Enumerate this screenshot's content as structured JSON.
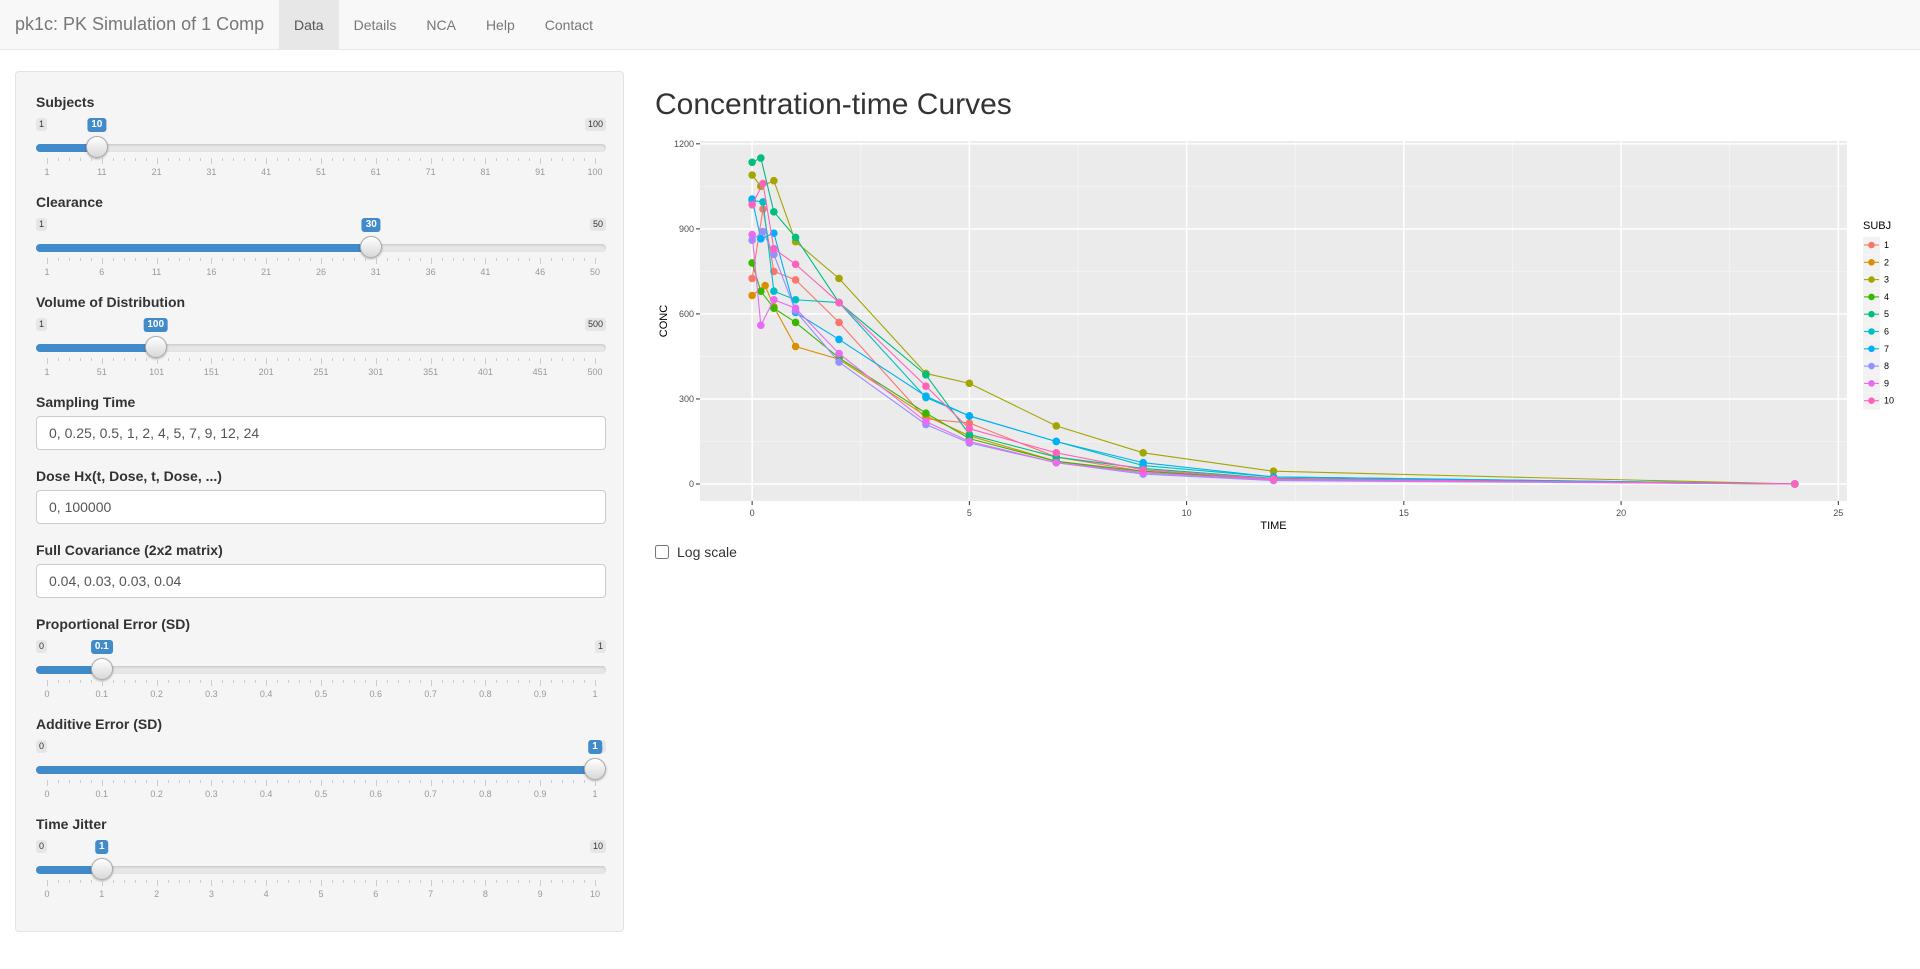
{
  "app": {
    "title": "pk1c: PK Simulation of 1 Comp",
    "tabs": [
      {
        "label": "Data",
        "active": true
      },
      {
        "label": "Details",
        "active": false
      },
      {
        "label": "NCA",
        "active": false
      },
      {
        "label": "Help",
        "active": false
      },
      {
        "label": "Contact",
        "active": false
      }
    ]
  },
  "sidebar": {
    "subjects": {
      "label": "Subjects",
      "min": 1,
      "max": 100,
      "value": 10,
      "ticks": [
        "1",
        "11",
        "21",
        "31",
        "41",
        "51",
        "61",
        "71",
        "81",
        "91",
        "100"
      ]
    },
    "clearance": {
      "label": "Clearance",
      "min": 1,
      "max": 50,
      "value": 30,
      "ticks": [
        "1",
        "6",
        "11",
        "16",
        "21",
        "26",
        "31",
        "36",
        "41",
        "46",
        "50"
      ]
    },
    "volume": {
      "label": "Volume of Distribution",
      "min": 1,
      "max": 500,
      "value": 100,
      "ticks": [
        "1",
        "51",
        "101",
        "151",
        "201",
        "251",
        "301",
        "351",
        "401",
        "451",
        "500"
      ]
    },
    "sampling_time": {
      "label": "Sampling Time",
      "value": "0, 0.25, 0.5, 1, 2, 4, 5, 7, 9, 12, 24"
    },
    "dose_hx": {
      "label": "Dose Hx(t, Dose, t, Dose, ...)",
      "value": "0, 100000"
    },
    "covariance": {
      "label": "Full Covariance (2x2 matrix)",
      "value": "0.04, 0.03, 0.03, 0.04"
    },
    "prop_error": {
      "label": "Proportional Error (SD)",
      "min": 0,
      "max": 1,
      "value": 0.1,
      "ticks": [
        "0",
        "0.1",
        "0.2",
        "0.3",
        "0.4",
        "0.5",
        "0.6",
        "0.7",
        "0.8",
        "0.9",
        "1"
      ]
    },
    "add_error": {
      "label": "Additive Error (SD)",
      "min": 0,
      "max": 1,
      "value": 1,
      "ticks": [
        "0",
        "0.1",
        "0.2",
        "0.3",
        "0.4",
        "0.5",
        "0.6",
        "0.7",
        "0.8",
        "0.9",
        "1"
      ]
    },
    "time_jitter": {
      "label": "Time Jitter",
      "min": 0,
      "max": 10,
      "value": 1,
      "ticks": [
        "0",
        "1",
        "2",
        "3",
        "4",
        "5",
        "6",
        "7",
        "8",
        "9",
        "10"
      ]
    }
  },
  "main": {
    "title": "Concentration-time Curves",
    "log_scale_label": "Log scale",
    "log_scale_checked": false
  },
  "chart_data": {
    "type": "line",
    "xlabel": "TIME",
    "ylabel": "CONC",
    "xlim": [
      -1.2,
      25.2
    ],
    "ylim": [
      -60,
      1210
    ],
    "xticks": [
      0,
      5,
      10,
      15,
      20,
      25
    ],
    "yticks": [
      0,
      300,
      600,
      900,
      1200
    ],
    "legend_title": "SUBJ",
    "legend_position": "right",
    "grid": true,
    "series": [
      {
        "name": "1",
        "color": "#F8766D",
        "x": [
          0,
          0.25,
          0.5,
          1,
          2,
          4,
          5,
          7,
          9,
          12,
          24
        ],
        "y": [
          725,
          970,
          750,
          720,
          570,
          230,
          215,
          95,
          45,
          18,
          0
        ]
      },
      {
        "name": "2",
        "color": "#D89000",
        "x": [
          0,
          0.3,
          0.5,
          1,
          2,
          4,
          5,
          7,
          9,
          12,
          24
        ],
        "y": [
          665,
          700,
          625,
          485,
          440,
          240,
          170,
          80,
          40,
          15,
          0
        ]
      },
      {
        "name": "3",
        "color": "#A3A500",
        "x": [
          0,
          0.2,
          0.5,
          1,
          2,
          4,
          5,
          7,
          9,
          12,
          24
        ],
        "y": [
          1090,
          1050,
          1070,
          855,
          725,
          390,
          355,
          205,
          110,
          45,
          0
        ]
      },
      {
        "name": "4",
        "color": "#39B600",
        "x": [
          0,
          0.2,
          0.5,
          1,
          2,
          4,
          5,
          7,
          9,
          12,
          24
        ],
        "y": [
          780,
          680,
          620,
          570,
          445,
          250,
          160,
          80,
          45,
          15,
          0
        ]
      },
      {
        "name": "5",
        "color": "#00BF7D",
        "x": [
          0,
          0.2,
          0.5,
          1,
          2,
          4,
          5,
          7,
          9,
          12,
          24
        ],
        "y": [
          1135,
          1150,
          960,
          870,
          640,
          385,
          175,
          95,
          55,
          20,
          0
        ]
      },
      {
        "name": "6",
        "color": "#00BFC4",
        "x": [
          0,
          0.25,
          0.5,
          1,
          2,
          4,
          5,
          7,
          9,
          12,
          24
        ],
        "y": [
          1000,
          995,
          680,
          650,
          640,
          305,
          240,
          150,
          65,
          25,
          0
        ]
      },
      {
        "name": "7",
        "color": "#00B0F6",
        "x": [
          0,
          0.2,
          0.5,
          1,
          2,
          4,
          5,
          7,
          9,
          12,
          24
        ],
        "y": [
          1005,
          865,
          885,
          605,
          510,
          310,
          240,
          150,
          75,
          25,
          0
        ]
      },
      {
        "name": "8",
        "color": "#9590FF",
        "x": [
          0,
          0.25,
          0.5,
          1,
          2,
          4,
          5,
          7,
          9,
          12,
          24
        ],
        "y": [
          860,
          890,
          810,
          610,
          430,
          210,
          145,
          75,
          35,
          12,
          0
        ]
      },
      {
        "name": "9",
        "color": "#E76BF3",
        "x": [
          0,
          0.2,
          0.5,
          1,
          2,
          4,
          5,
          7,
          9,
          12,
          24
        ],
        "y": [
          880,
          560,
          650,
          620,
          460,
          220,
          150,
          75,
          40,
          15,
          0
        ]
      },
      {
        "name": "10",
        "color": "#FF62BC",
        "x": [
          0,
          0.25,
          0.5,
          1,
          2,
          4,
          5,
          7,
          9,
          12,
          24
        ],
        "y": [
          985,
          1060,
          830,
          775,
          640,
          345,
          195,
          110,
          50,
          18,
          0
        ]
      }
    ]
  }
}
